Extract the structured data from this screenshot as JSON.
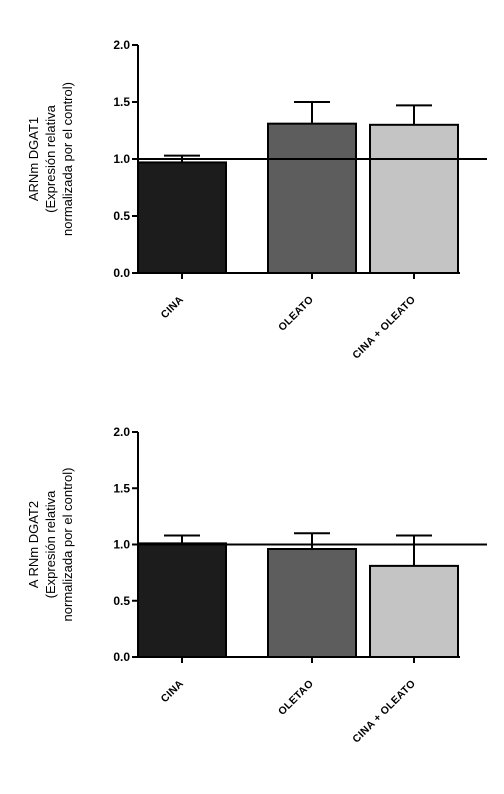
{
  "chart_data": [
    {
      "type": "bar",
      "title": "",
      "categories": [
        "CINA",
        "OLEATO",
        "CINA + OLEATO"
      ],
      "series": [
        {
          "values": [
            0.97,
            1.31,
            1.3
          ],
          "errors": [
            0.06,
            0.19,
            0.17
          ],
          "colors": [
            "#1c1c1c",
            "#5d5d5d",
            "#c4c4c4"
          ]
        }
      ],
      "ylabel_lines": [
        "ARNm DGAT1",
        "(Expresión relativa",
        "normalizada por el control)"
      ],
      "ylim": [
        0.0,
        2.0
      ],
      "yticks": [
        "0.0",
        "0.5",
        "1.0",
        "1.5",
        "2.0"
      ],
      "reference_line": 1.0,
      "grid": false
    },
    {
      "type": "bar",
      "title": "",
      "categories": [
        "CINA",
        "OLETAO",
        "CINA + OLEATO"
      ],
      "series": [
        {
          "values": [
            1.01,
            0.96,
            0.81
          ],
          "errors": [
            0.07,
            0.14,
            0.27
          ],
          "colors": [
            "#1c1c1c",
            "#5d5d5d",
            "#c4c4c4"
          ]
        }
      ],
      "ylabel_lines": [
        "A RNm DGAT2",
        "(Expresión relativa",
        "normalizada por el control)"
      ],
      "ylim": [
        0.0,
        2.0
      ],
      "yticks": [
        "0.0",
        "0.5",
        "1.0",
        "1.5",
        "2.0"
      ],
      "reference_line": 1.0,
      "grid": false
    }
  ]
}
